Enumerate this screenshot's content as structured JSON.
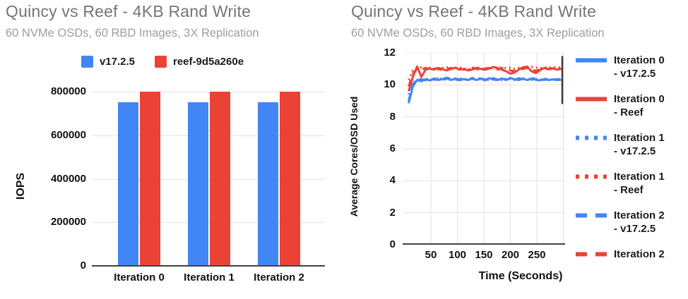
{
  "palette": {
    "blue": "#4285F4",
    "red": "#EA4335",
    "grid": "#e2e2e2",
    "axis": "#424242",
    "title_gray": "#757575",
    "subtitle_gray": "#9e9e9e",
    "edge_artifact": "#3c3c3c"
  },
  "chart_data": [
    {
      "type": "bar",
      "title": "Quincy vs Reef - 4KB Rand Write",
      "subtitle": "60 NVMe OSDs, 60 RBD Images, 3X Replication",
      "ylabel": "IOPS",
      "categories": [
        "Iteration 0",
        "Iteration 1",
        "Iteration 2"
      ],
      "series": [
        {
          "name": "v17.2.5",
          "color": "#4285F4",
          "values": [
            751000,
            751000,
            751000
          ]
        },
        {
          "name": "reef-9d5a260e",
          "color": "#EA4335",
          "values": [
            800000,
            800000,
            800000
          ]
        }
      ],
      "yticks": [
        0,
        200000,
        400000,
        600000,
        800000
      ],
      "ylim": [
        0,
        800000
      ],
      "grid": "horizontal",
      "legend_position": "top"
    },
    {
      "type": "line",
      "title": "Quincy vs Reef - 4KB Rand Write",
      "subtitle": "60 NVMe OSDs, 60 RBD Images, 3X Replication",
      "xlabel": "Time (Seconds)",
      "ylabel": "Average Cores/OSD Used",
      "xticks": [
        50,
        100,
        150,
        200,
        250
      ],
      "yticks": [
        0,
        2,
        4,
        6,
        8,
        10,
        12
      ],
      "xlim": [
        0,
        303
      ],
      "ylim": [
        0,
        12
      ],
      "grid": "both",
      "legend_position": "right",
      "x": [
        8,
        16,
        24,
        32,
        40,
        48,
        56,
        64,
        72,
        80,
        88,
        96,
        104,
        112,
        120,
        128,
        136,
        144,
        152,
        160,
        168,
        176,
        184,
        192,
        200,
        208,
        216,
        224,
        232,
        240,
        248,
        256,
        264,
        272,
        280,
        288,
        296
      ],
      "series": [
        {
          "name": "Iteration 0 - v17.2.5",
          "label_lines": [
            "Iteration 0",
            "- v17.2.5"
          ],
          "color": "#4285F4",
          "dash": "solid",
          "values": [
            8.85,
            9.9,
            10.3,
            10.22,
            10.35,
            10.28,
            10.4,
            10.3,
            10.36,
            10.45,
            10.3,
            10.4,
            10.28,
            10.36,
            10.3,
            10.44,
            10.3,
            10.38,
            10.28,
            10.42,
            10.33,
            10.3,
            10.4,
            10.32,
            10.42,
            10.35,
            10.3,
            10.38,
            10.3,
            10.4,
            10.32,
            10.28,
            10.36,
            10.3,
            10.34,
            10.3,
            10.32
          ]
        },
        {
          "name": "Iteration 0 - Reef",
          "label_lines": [
            "Iteration 0",
            "- Reef"
          ],
          "color": "#EA4335",
          "dash": "solid",
          "values": [
            9.6,
            10.5,
            11.15,
            10.5,
            10.95,
            11.02,
            10.95,
            11.06,
            10.98,
            10.9,
            11.0,
            11.08,
            10.95,
            11.0,
            10.9,
            10.96,
            11.06,
            11.0,
            10.94,
            11.02,
            11.12,
            11.06,
            10.95,
            10.85,
            10.7,
            10.78,
            10.96,
            11.1,
            11.14,
            10.85,
            10.74,
            10.92,
            11.06,
            11.0,
            11.04,
            10.95,
            11.0
          ]
        },
        {
          "name": "Iteration 1 - v17.2.5",
          "label_lines": [
            "Iteration 1",
            "- v17.2.5"
          ],
          "color": "#4285F4",
          "dash": "dotted",
          "values": [
            9.4,
            10.1,
            10.34,
            10.28,
            10.4,
            10.32,
            10.28,
            10.36,
            10.44,
            10.3,
            10.38,
            10.3,
            10.42,
            10.32,
            10.4,
            10.3,
            10.36,
            10.44,
            10.32,
            10.3,
            10.4,
            10.34,
            10.3,
            10.38,
            10.44,
            10.3,
            10.34,
            10.42,
            10.32,
            10.3,
            10.38,
            10.32,
            10.4,
            10.34,
            10.3,
            10.36,
            10.3
          ]
        },
        {
          "name": "Iteration 1 - Reef",
          "label_lines": [
            "Iteration 1",
            "- Reef"
          ],
          "color": "#EA4335",
          "dash": "dotted",
          "values": [
            10.3,
            10.9,
            11.05,
            11.1,
            11.0,
            11.08,
            11.02,
            10.96,
            11.06,
            11.1,
            11.0,
            11.06,
            11.1,
            11.02,
            10.96,
            11.06,
            11.1,
            11.04,
            11.0,
            11.08,
            11.02,
            11.06,
            11.1,
            11.04,
            11.08,
            11.0,
            11.06,
            11.1,
            11.06,
            11.12,
            11.08,
            11.04,
            11.1,
            11.06,
            11.12,
            11.08,
            11.1
          ]
        },
        {
          "name": "Iteration 2 - v17.2.5",
          "label_lines": [
            "Iteration 2",
            "- v17.2.5"
          ],
          "color": "#4285F4",
          "dash": "dashed",
          "values": [
            9.0,
            10.05,
            10.3,
            10.36,
            10.28,
            10.38,
            10.32,
            10.42,
            10.3,
            10.38,
            10.44,
            10.3,
            10.36,
            10.42,
            10.3,
            10.38,
            10.3,
            10.4,
            10.34,
            10.36,
            10.42,
            10.32,
            10.38,
            10.3,
            10.4,
            10.32,
            10.42,
            10.34,
            10.3,
            10.38,
            10.42,
            10.34,
            10.3,
            10.38,
            10.32,
            10.36,
            10.34
          ]
        },
        {
          "name": "Iteration 2",
          "label_lines": [
            "Iteration 2"
          ],
          "color": "#EA4335",
          "dash": "dashed",
          "values": [
            9.9,
            10.7,
            11.0,
            10.96,
            11.06,
            10.98,
            11.04,
            11.0,
            10.92,
            11.0,
            11.06,
            10.98,
            11.02,
            10.95,
            11.0,
            11.06,
            11.0,
            10.94,
            11.02,
            11.06,
            11.0,
            10.96,
            11.04,
            11.0,
            10.9,
            10.85,
            10.92,
            11.0,
            11.06,
            10.96,
            10.88,
            10.95,
            11.02,
            10.98,
            11.0,
            10.96,
            11.02
          ]
        }
      ],
      "edge_artifact": {
        "time": 298,
        "from": 8.8,
        "to": 11.8
      }
    }
  ]
}
